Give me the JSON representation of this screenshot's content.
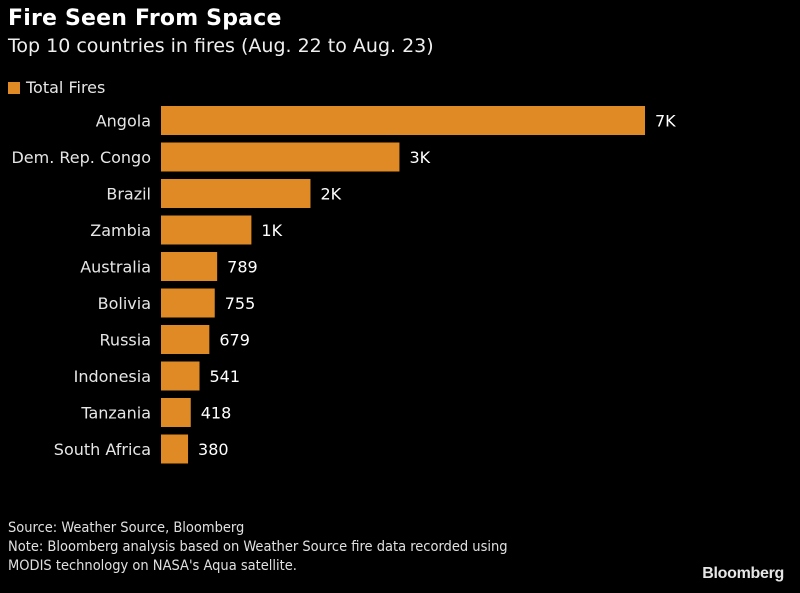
{
  "chart_data": {
    "type": "bar",
    "orientation": "horizontal",
    "title": "Fire Seen From Space",
    "subtitle": "Top 10 countries in fires (Aug. 22 to Aug. 23)",
    "legend": [
      {
        "name": "Total Fires",
        "color": "#e08a26"
      }
    ],
    "legend_placement": "top-left",
    "categories": [
      "Angola",
      "Dem. Rep. Congo",
      "Brazil",
      "Zambia",
      "Australia",
      "Bolivia",
      "Russia",
      "Indonesia",
      "Tanzania",
      "South Africa"
    ],
    "series": [
      {
        "name": "Total Fires",
        "values": [
          6800,
          3350,
          2100,
          1270,
          789,
          755,
          679,
          541,
          418,
          380
        ],
        "labels": [
          "7K",
          "3K",
          "2K",
          "1K",
          "789",
          "755",
          "679",
          "541",
          "418",
          "380"
        ]
      }
    ],
    "xlabel": "",
    "ylabel": "",
    "xlim": [
      0,
      6800
    ],
    "grid": false
  },
  "footer": {
    "source": "Source: Weather Source, Bloomberg",
    "note_line1": "Note: Bloomberg analysis based on Weather Source fire data recorded using",
    "note_line2": "MODIS technology on NASA's Aqua satellite."
  },
  "brand": "Bloomberg"
}
